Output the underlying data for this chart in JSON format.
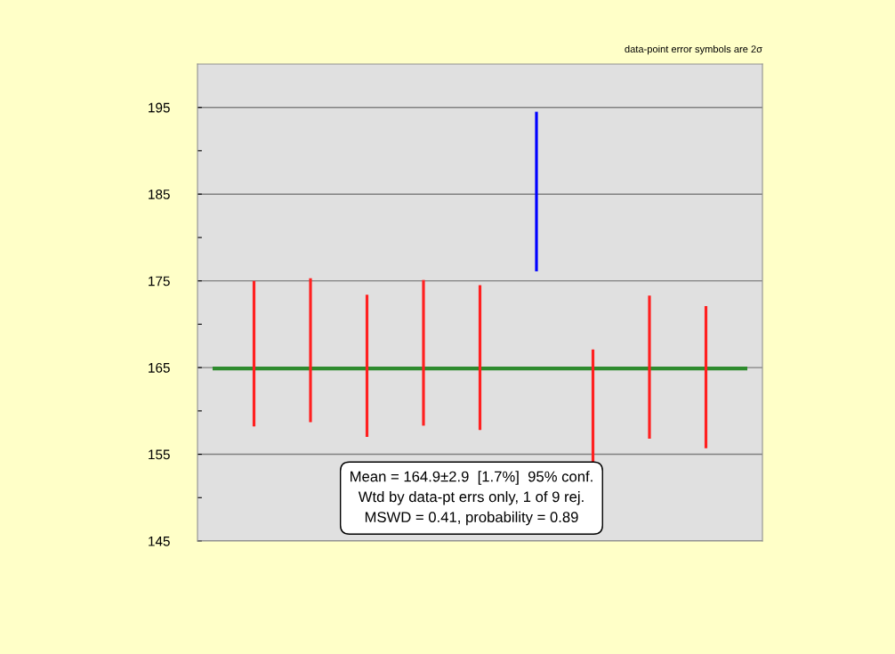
{
  "chart_data": {
    "type": "bar",
    "categories": [
      null,
      null,
      null,
      null,
      null,
      null,
      null,
      null,
      null
    ],
    "values": [
      16.8,
      16.6,
      16.4,
      16.8,
      16.7,
      18.4,
      16.6,
      16.5,
      16.4
    ],
    "base": [
      158.2,
      158.7,
      157.0,
      158.3,
      157.8,
      176.1,
      150.5,
      156.8,
      155.7
    ],
    "colors": [
      "#ff2020",
      "#ff2020",
      "#ff2020",
      "#ff2020",
      "#ff2020",
      "#0000ff",
      "#ff2020",
      "#ff2020",
      "#ff2020"
    ],
    "ylim": [
      145,
      200
    ],
    "yticks": [
      145,
      {
        "value": 150,
        "label": null
      },
      155,
      {
        "value": 160,
        "label": null
      },
      165,
      {
        "value": 170,
        "label": null
      },
      175,
      {
        "value": 180,
        "label": null
      },
      185,
      {
        "value": 190,
        "label": null
      },
      195
    ],
    "tick_labels": "y",
    "grid": "y",
    "ref_lines": [
      {
        "axis": "y",
        "value": 164.9,
        "color": "#2e8b2e"
      }
    ],
    "annotations": [
      "data-point error symbols are 2σ",
      "Mean = 164.9±2.9  [1.7%]  95% conf.\nWtd by data-pt errs only, 1 of 9 rej.\nMSWD = 0.41, probability = 0.89"
    ]
  }
}
